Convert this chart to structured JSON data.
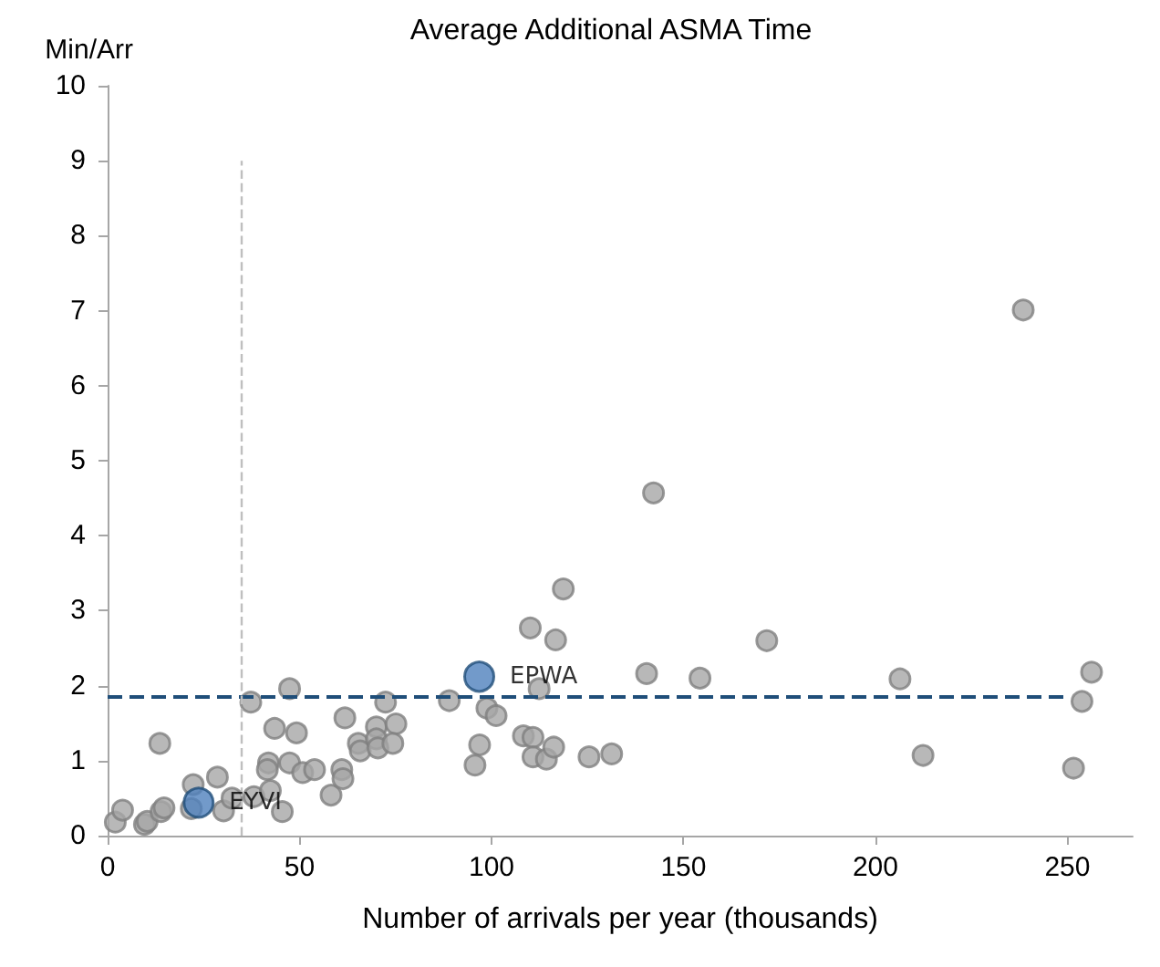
{
  "chart_data": {
    "type": "scatter",
    "title": "Average Additional ASMA Time",
    "xlabel": "Number of arrivals per year (thousands)",
    "ylabel": "Min/Arr",
    "xlim": [
      0,
      267
    ],
    "xticks": [
      0,
      50,
      100,
      150,
      200,
      250
    ],
    "ylim": [
      0,
      10
    ],
    "yticks": [
      0,
      1,
      2,
      3,
      4,
      5,
      6,
      7,
      8,
      9,
      10
    ],
    "grid": false,
    "legend": false,
    "marker": "circle",
    "series": [
      {
        "color": "#a6a6a6",
        "x": [
          2.0,
          3.9,
          9.6,
          10.3,
          13.9,
          14.7,
          13.6,
          22.3,
          21.8,
          28.6,
          30.2,
          32.4,
          37.3,
          38.1,
          41.9,
          41.6,
          42.4,
          45.5,
          43.5,
          47.4,
          47.4,
          49.2,
          50.8,
          53.9,
          58.2,
          61.0,
          61.3,
          61.8,
          65.3,
          65.8,
          72.4,
          70.0,
          75.1,
          70.0,
          70.4,
          74.3,
          89.0,
          98.8,
          101.2,
          96.9,
          95.7,
          110.1,
          116.7,
          118.7,
          112.4,
          108.3,
          110.8,
          110.8,
          114.3,
          116.2,
          125.4,
          131.3,
          140.4,
          238.5,
          142.2,
          171.7,
          154.3,
          206.4,
          256.3,
          253.8,
          212.4,
          251.6
        ],
        "values": [
          0.18,
          0.34,
          0.15,
          0.19,
          0.32,
          0.37,
          1.23,
          0.68,
          0.36,
          0.78,
          0.33,
          0.5,
          1.78,
          0.52,
          0.97,
          0.88,
          0.6,
          0.32,
          1.43,
          1.96,
          0.97,
          1.37,
          0.84,
          0.88,
          0.54,
          0.88,
          0.76,
          1.57,
          1.23,
          1.13,
          1.78,
          1.45,
          1.49,
          1.29,
          1.17,
          1.23,
          1.8,
          1.7,
          1.6,
          1.21,
          0.94,
          2.77,
          2.61,
          3.29,
          1.96,
          1.33,
          1.31,
          1.05,
          1.02,
          1.18,
          1.05,
          1.09,
          2.16,
          7.01,
          4.57,
          2.6,
          2.1,
          2.09,
          2.18,
          1.79,
          1.07,
          0.9
        ]
      },
      {
        "name": "EPWA",
        "color": "#4f81bd",
        "x": [
          96.8
        ],
        "values": [
          2.12
        ]
      },
      {
        "name": "EYVI",
        "color": "#4f81bd",
        "x": [
          23.7
        ],
        "values": [
          0.44
        ]
      }
    ],
    "ref_lines": [
      {
        "axis": "y",
        "value": 1.85,
        "color": "#1f4e79",
        "line_style": "dashed"
      },
      {
        "axis": "x",
        "value": 35,
        "color": "#bfbfbf",
        "line_style": "dashed"
      }
    ]
  }
}
